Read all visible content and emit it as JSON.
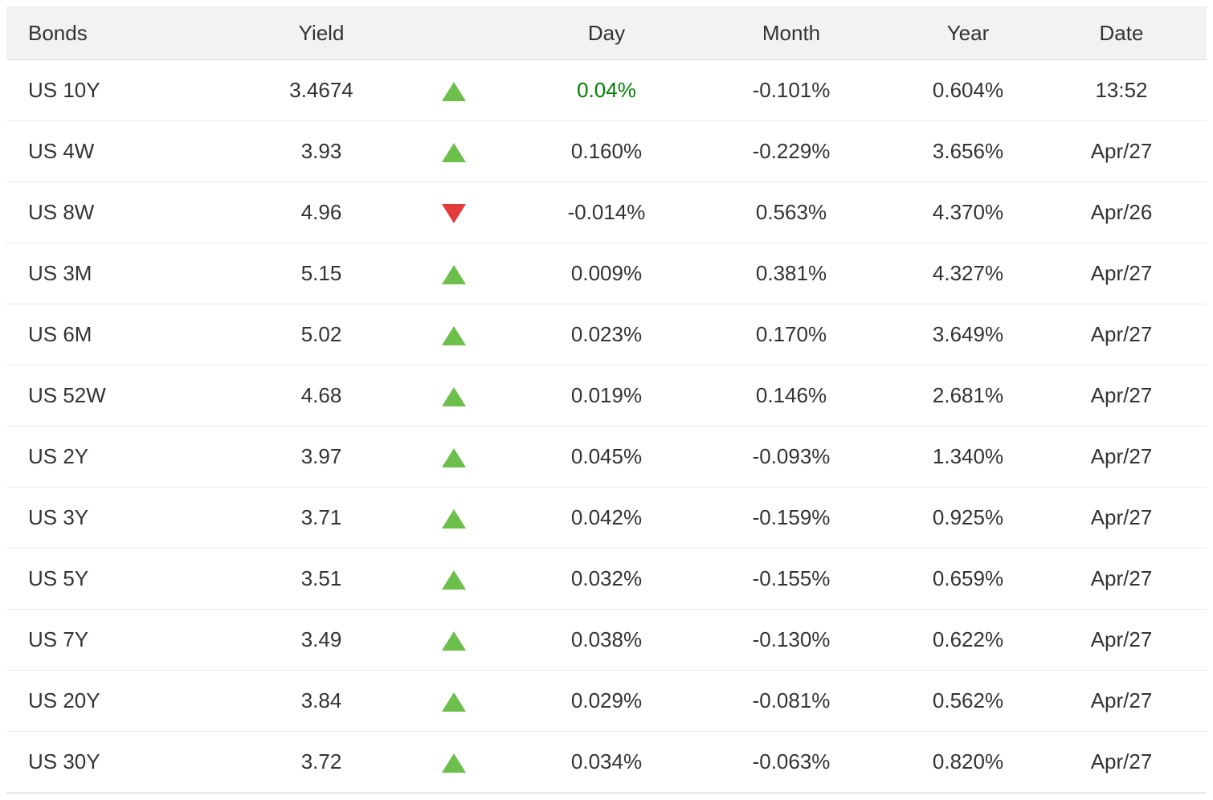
{
  "table": {
    "headers": [
      "Bonds",
      "Yield",
      "",
      "Day",
      "Month",
      "Year",
      "Date"
    ],
    "rows": [
      {
        "bond": "US 10Y",
        "yield": "3.4674",
        "direction": "up",
        "day": "0.04%",
        "day_color": "green",
        "month": "-0.101%",
        "year": "0.604%",
        "date": "13:52"
      },
      {
        "bond": "US 4W",
        "yield": "3.93",
        "direction": "up",
        "day": "0.160%",
        "month": "-0.229%",
        "year": "3.656%",
        "date": "Apr/27"
      },
      {
        "bond": "US 8W",
        "yield": "4.96",
        "direction": "down",
        "day": "-0.014%",
        "month": "0.563%",
        "year": "4.370%",
        "date": "Apr/26"
      },
      {
        "bond": "US 3M",
        "yield": "5.15",
        "direction": "up",
        "day": "0.009%",
        "month": "0.381%",
        "year": "4.327%",
        "date": "Apr/27"
      },
      {
        "bond": "US 6M",
        "yield": "5.02",
        "direction": "up",
        "day": "0.023%",
        "month": "0.170%",
        "year": "3.649%",
        "date": "Apr/27"
      },
      {
        "bond": "US 52W",
        "yield": "4.68",
        "direction": "up",
        "day": "0.019%",
        "month": "0.146%",
        "year": "2.681%",
        "date": "Apr/27"
      },
      {
        "bond": "US 2Y",
        "yield": "3.97",
        "direction": "up",
        "day": "0.045%",
        "month": "-0.093%",
        "year": "1.340%",
        "date": "Apr/27"
      },
      {
        "bond": "US 3Y",
        "yield": "3.71",
        "direction": "up",
        "day": "0.042%",
        "month": "-0.159%",
        "year": "0.925%",
        "date": "Apr/27"
      },
      {
        "bond": "US 5Y",
        "yield": "3.51",
        "direction": "up",
        "day": "0.032%",
        "month": "-0.155%",
        "year": "0.659%",
        "date": "Apr/27"
      },
      {
        "bond": "US 7Y",
        "yield": "3.49",
        "direction": "up",
        "day": "0.038%",
        "month": "-0.130%",
        "year": "0.622%",
        "date": "Apr/27"
      },
      {
        "bond": "US 20Y",
        "yield": "3.84",
        "direction": "up",
        "day": "0.029%",
        "month": "-0.081%",
        "year": "0.562%",
        "date": "Apr/27"
      },
      {
        "bond": "US 30Y",
        "yield": "3.72",
        "direction": "up",
        "day": "0.034%",
        "month": "-0.063%",
        "year": "0.820%",
        "date": "Apr/27"
      }
    ],
    "colors": {
      "up_arrow_green": "#6dbf4b",
      "down_arrow_red": "#e23b3b",
      "day_positive_green": "#008000",
      "header_background": "#f2f2f2",
      "text": "#333333"
    }
  }
}
